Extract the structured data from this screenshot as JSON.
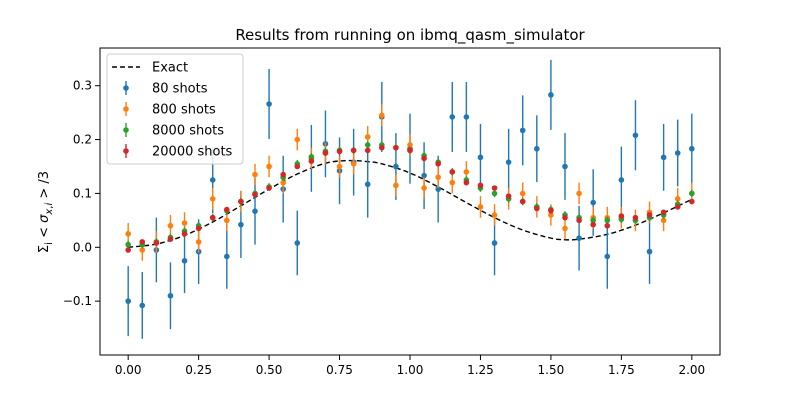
{
  "chart_data": {
    "type": "scatter",
    "title": "Results from running on ibmq_qasm_simulator",
    "xlabel": "",
    "ylabel": "Σ_i < σ_{x,i} > /3",
    "xlim": [
      -0.1,
      2.1
    ],
    "ylim": [
      -0.2,
      0.37
    ],
    "xticks": [
      "0.00",
      "0.25",
      "0.50",
      "0.75",
      "1.00",
      "1.25",
      "1.50",
      "1.75",
      "2.00"
    ],
    "yticks": [
      "−0.1",
      "0.0",
      "0.1",
      "0.2",
      "0.3"
    ],
    "grid": false,
    "legend_position": "top-left",
    "x": [
      0.0,
      0.05,
      0.1,
      0.15,
      0.2,
      0.25,
      0.3,
      0.35,
      0.4,
      0.45,
      0.5,
      0.55,
      0.6,
      0.65,
      0.7,
      0.75,
      0.8,
      0.85,
      0.9,
      0.95,
      1.0,
      1.05,
      1.1,
      1.15,
      1.2,
      1.25,
      1.3,
      1.35,
      1.4,
      1.45,
      1.5,
      1.55,
      1.6,
      1.65,
      1.7,
      1.75,
      1.8,
      1.85,
      1.9,
      1.95,
      2.0
    ],
    "exact": {
      "name": "Exact",
      "color": "#000000",
      "x": [
        0.0,
        0.1,
        0.2,
        0.3,
        0.4,
        0.5,
        0.6,
        0.7,
        0.78,
        0.85,
        0.9,
        1.0,
        1.1,
        1.2,
        1.3,
        1.4,
        1.5,
        1.55,
        1.6,
        1.7,
        1.8,
        1.9,
        2.0
      ],
      "y": [
        0.0,
        0.006,
        0.022,
        0.047,
        0.077,
        0.108,
        0.136,
        0.156,
        0.161,
        0.159,
        0.155,
        0.138,
        0.112,
        0.083,
        0.055,
        0.032,
        0.017,
        0.014,
        0.015,
        0.024,
        0.041,
        0.064,
        0.089
      ]
    },
    "series": [
      {
        "name": "80 shots",
        "color": "#1f77b4",
        "y": [
          -0.1,
          -0.108,
          -0.005,
          -0.09,
          -0.025,
          -0.008,
          0.125,
          -0.017,
          0.042,
          0.067,
          0.266,
          0.108,
          0.008,
          0.165,
          0.192,
          0.142,
          0.158,
          0.117,
          0.242,
          0.15,
          0.183,
          0.133,
          0.108,
          0.242,
          0.242,
          0.167,
          0.008,
          0.158,
          0.217,
          0.183,
          0.283,
          0.15,
          0.017,
          0.083,
          -0.017,
          0.125,
          0.208,
          -0.008,
          0.167,
          0.175,
          0.183
        ],
        "err": [
          0.065,
          0.062,
          0.06,
          0.062,
          0.06,
          0.06,
          0.062,
          0.06,
          0.062,
          0.062,
          0.065,
          0.062,
          0.06,
          0.062,
          0.062,
          0.062,
          0.062,
          0.062,
          0.065,
          0.062,
          0.065,
          0.062,
          0.062,
          0.065,
          0.065,
          0.062,
          0.06,
          0.062,
          0.065,
          0.062,
          0.065,
          0.062,
          0.06,
          0.062,
          0.06,
          0.062,
          0.065,
          0.06,
          0.062,
          0.062,
          0.065
        ]
      },
      {
        "name": "800 shots",
        "color": "#ff7f0e",
        "y": [
          0.025,
          -0.005,
          0.01,
          0.04,
          0.045,
          0.01,
          0.09,
          0.05,
          0.085,
          0.135,
          0.15,
          0.12,
          0.2,
          0.165,
          0.175,
          0.15,
          0.155,
          0.205,
          0.245,
          0.115,
          0.19,
          0.11,
          0.13,
          0.12,
          0.14,
          0.075,
          0.06,
          0.09,
          0.1,
          0.075,
          0.06,
          0.035,
          0.1,
          0.055,
          0.055,
          0.055,
          0.05,
          0.065,
          0.05,
          0.09,
          0.1
        ],
        "err": [
          0.02,
          0.02,
          0.02,
          0.02,
          0.02,
          0.02,
          0.02,
          0.02,
          0.02,
          0.02,
          0.02,
          0.02,
          0.02,
          0.02,
          0.02,
          0.02,
          0.02,
          0.02,
          0.02,
          0.02,
          0.02,
          0.02,
          0.02,
          0.02,
          0.02,
          0.02,
          0.02,
          0.02,
          0.02,
          0.02,
          0.02,
          0.02,
          0.02,
          0.02,
          0.02,
          0.02,
          0.02,
          0.02,
          0.02,
          0.02,
          0.02
        ]
      },
      {
        "name": "8000 shots",
        "color": "#2ca02c",
        "y": [
          0.005,
          0.005,
          0.01,
          0.018,
          0.03,
          0.04,
          0.055,
          0.068,
          0.085,
          0.1,
          0.112,
          0.13,
          0.155,
          0.168,
          0.178,
          0.18,
          0.18,
          0.19,
          0.19,
          0.185,
          0.18,
          0.17,
          0.158,
          0.14,
          0.125,
          0.11,
          0.1,
          0.09,
          0.085,
          0.075,
          0.07,
          0.06,
          0.055,
          0.05,
          0.05,
          0.052,
          0.05,
          0.055,
          0.06,
          0.08,
          0.1
        ],
        "err": [
          0.007,
          0.007,
          0.007,
          0.007,
          0.007,
          0.007,
          0.007,
          0.007,
          0.007,
          0.007,
          0.007,
          0.007,
          0.007,
          0.007,
          0.007,
          0.007,
          0.007,
          0.007,
          0.007,
          0.007,
          0.007,
          0.007,
          0.007,
          0.007,
          0.007,
          0.007,
          0.007,
          0.007,
          0.007,
          0.007,
          0.007,
          0.007,
          0.007,
          0.007,
          0.007,
          0.007,
          0.007,
          0.007,
          0.007,
          0.007,
          0.007
        ]
      },
      {
        "name": "20000 shots",
        "color": "#d62728",
        "y": [
          -0.005,
          0.01,
          0.008,
          0.015,
          0.025,
          0.035,
          0.055,
          0.07,
          0.085,
          0.098,
          0.11,
          0.135,
          0.15,
          0.16,
          0.175,
          0.178,
          0.18,
          0.18,
          0.185,
          0.185,
          0.18,
          0.165,
          0.155,
          0.14,
          0.12,
          0.115,
          0.11,
          0.095,
          0.085,
          0.072,
          0.068,
          0.055,
          0.05,
          0.042,
          0.04,
          0.058,
          0.055,
          0.06,
          0.065,
          0.075,
          0.085
        ],
        "err": [
          0.004,
          0.004,
          0.004,
          0.004,
          0.004,
          0.004,
          0.004,
          0.004,
          0.004,
          0.004,
          0.004,
          0.004,
          0.004,
          0.004,
          0.004,
          0.004,
          0.004,
          0.004,
          0.004,
          0.004,
          0.004,
          0.004,
          0.004,
          0.004,
          0.004,
          0.004,
          0.004,
          0.004,
          0.004,
          0.004,
          0.004,
          0.004,
          0.004,
          0.004,
          0.004,
          0.004,
          0.004,
          0.004,
          0.004,
          0.004,
          0.004
        ]
      }
    ]
  }
}
